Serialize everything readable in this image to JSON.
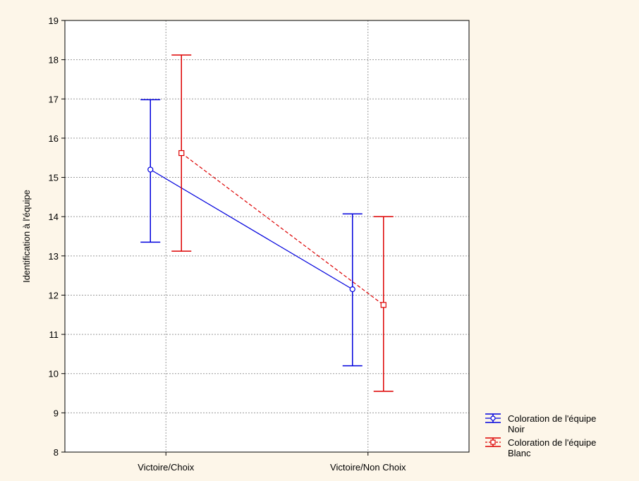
{
  "chart_data": {
    "type": "line",
    "subtype": "means-with-error-bars",
    "title": "",
    "xlabel": "",
    "ylabel": "Identification à l'équipe",
    "categories": [
      "Victoire/Choix",
      "Victoire/Non Choix"
    ],
    "ylim": [
      8,
      19
    ],
    "yticks": [
      "8",
      "9",
      "10",
      "11",
      "12",
      "13",
      "14",
      "15",
      "16",
      "17",
      "18",
      "19"
    ],
    "grid": true,
    "legend_position": "right",
    "series": [
      {
        "legend_line1": "Coloration de l'équipe",
        "legend_line2": "Noir",
        "color": "#0000dd",
        "marker": "circle",
        "line_style": "solid",
        "values": [
          15.2,
          12.15
        ],
        "lower": [
          13.35,
          10.2
        ],
        "upper": [
          16.98,
          14.07
        ]
      },
      {
        "legend_line1": "Coloration de l'équipe",
        "legend_line2": "Blanc",
        "color": "#dd0000",
        "marker": "square",
        "line_style": "dashed",
        "values": [
          15.62,
          11.75
        ],
        "lower": [
          13.12,
          9.55
        ],
        "upper": [
          18.12,
          14.0
        ]
      }
    ]
  }
}
